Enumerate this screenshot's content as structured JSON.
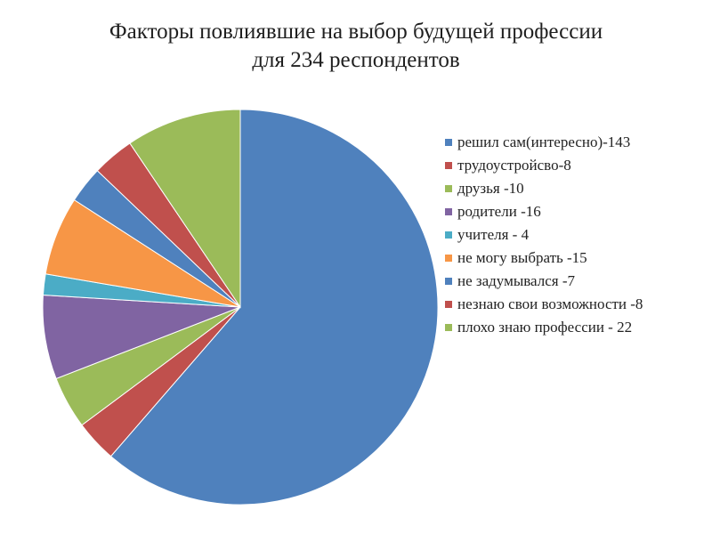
{
  "title_line1": "Факторы повлиявшие на выбор будущей профессии",
  "title_line2": "для 234 респондентов",
  "chart_data": {
    "type": "pie",
    "title": "Факторы повлиявшие на выбор будущей профессии для 234 респондентов",
    "legend_position": "right",
    "slices": [
      {
        "label": "решил сам(интересно)-143",
        "value": 143,
        "color": "#4f81bd"
      },
      {
        "label": "трудоустройсво-8",
        "value": 8,
        "color": "#c0504d"
      },
      {
        "label": "друзья -10",
        "value": 10,
        "color": "#9bbb59"
      },
      {
        "label": "родители -16",
        "value": 16,
        "color": "#8064a2"
      },
      {
        "label": "учителя - 4",
        "value": 4,
        "color": "#4bacc6"
      },
      {
        "label": "не могу выбрать -15",
        "value": 15,
        "color": "#f79646"
      },
      {
        "label": "не задумывался -7",
        "value": 7,
        "color": "#4f81bd"
      },
      {
        "label": "незнаю свои возможности -8",
        "value": 8,
        "color": "#c0504d"
      },
      {
        "label": "плохо знаю профессии - 22",
        "value": 22,
        "color": "#9bbb59"
      }
    ]
  }
}
